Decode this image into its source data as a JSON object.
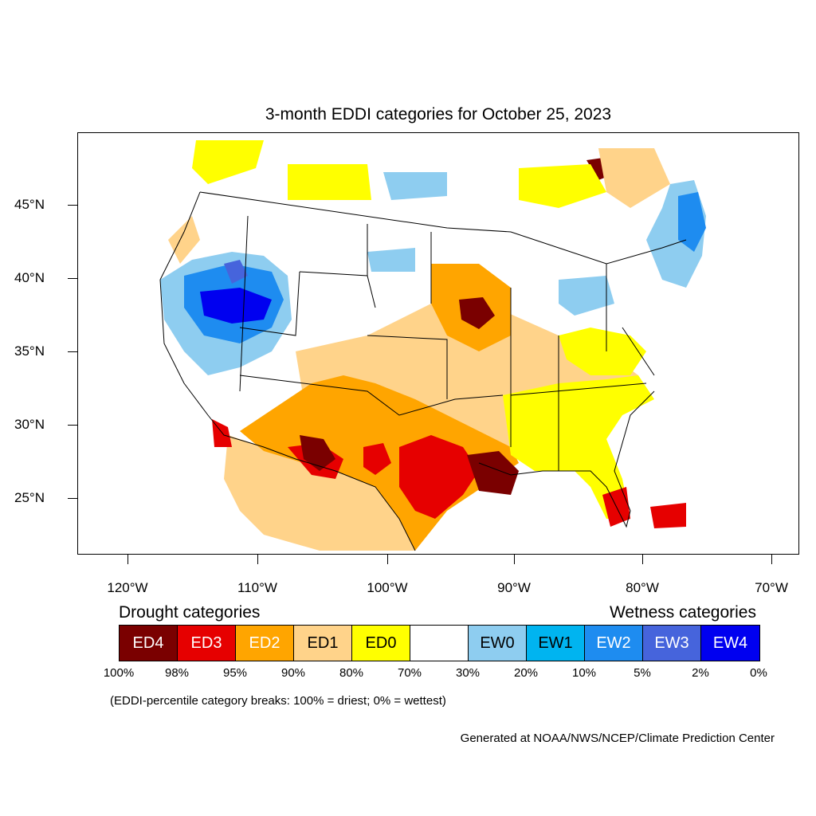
{
  "title": "3-month EDDI categories for October 25, 2023",
  "latitude_labels": [
    "45°N",
    "40°N",
    "35°N",
    "30°N",
    "25°N"
  ],
  "longitude_labels": [
    "120°W",
    "110°W",
    "100°W",
    "90°W",
    "80°W",
    "70°W"
  ],
  "legend": {
    "drought_heading": "Drought categories",
    "wetness_heading": "Wetness categories",
    "categories": [
      {
        "label": "ED4",
        "color": "#7a0000",
        "text_color": "#ffffff"
      },
      {
        "label": "ED3",
        "color": "#e60000",
        "text_color": "#ffffff"
      },
      {
        "label": "ED2",
        "color": "#ffa500",
        "text_color": "#ffffff"
      },
      {
        "label": "ED1",
        "color": "#ffd38a",
        "text_color": "#000000"
      },
      {
        "label": "ED0",
        "color": "#ffff00",
        "text_color": "#000000"
      },
      {
        "label": "",
        "color": "#ffffff",
        "text_color": "#000000"
      },
      {
        "label": "EW0",
        "color": "#8ecdf0",
        "text_color": "#000000"
      },
      {
        "label": "EW1",
        "color": "#00b4f0",
        "text_color": "#000000"
      },
      {
        "label": "EW2",
        "color": "#1e8cf0",
        "text_color": "#ffffff"
      },
      {
        "label": "EW3",
        "color": "#4664dc",
        "text_color": "#ffffff"
      },
      {
        "label": "EW4",
        "color": "#0000f0",
        "text_color": "#ffffff"
      }
    ],
    "percentiles": [
      "100%",
      "98%",
      "95%",
      "90%",
      "80%",
      "70%",
      "30%",
      "20%",
      "10%",
      "5%",
      "2%",
      "0%"
    ]
  },
  "note": "(EDDI-percentile category breaks: 100% = driest; 0% = wettest)",
  "credit": "Generated at NOAA/NWS/NCEP/Climate Prediction Center"
}
